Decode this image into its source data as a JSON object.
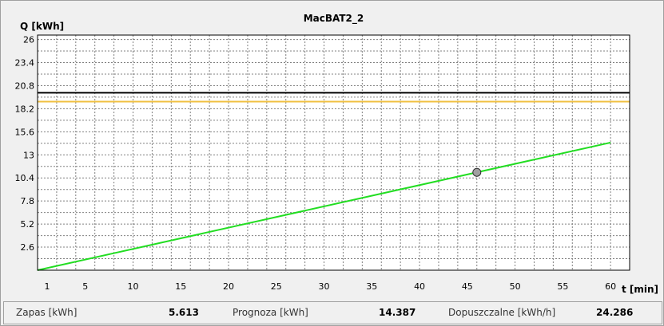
{
  "chart_data": {
    "type": "line",
    "title": "MacBAT2_2",
    "xlabel": "t [min]",
    "ylabel": "Q [kWh]",
    "xlim": [
      0,
      62
    ],
    "ylim": [
      0,
      26.5
    ],
    "x_ticks": [
      1,
      5,
      10,
      15,
      20,
      25,
      30,
      35,
      40,
      45,
      50,
      55,
      60
    ],
    "y_ticks": [
      2.6,
      5.2,
      7.8,
      10.4,
      13,
      15.6,
      18.2,
      20.8,
      23.4,
      26
    ],
    "x_tick_labels": [
      "1",
      "5",
      "10",
      "15",
      "20",
      "25",
      "30",
      "35",
      "40",
      "45",
      "50",
      "55",
      "60"
    ],
    "y_tick_labels": [
      "2.6",
      "5.2",
      "7.8",
      "10.4",
      "13",
      "15.6",
      "18.2",
      "20.8",
      "23.4",
      "26"
    ],
    "grid": true,
    "series": [
      {
        "color": "#22dd22",
        "x": [
          0,
          60
        ],
        "y": [
          0,
          14.387
        ]
      }
    ],
    "marker": {
      "x": 46,
      "y": 11.03,
      "color": "#a0a0a0"
    },
    "hlines": [
      {
        "y": 20.0,
        "color": "#000000"
      },
      {
        "y": 19.0,
        "color": "#f0c040"
      }
    ]
  },
  "status": {
    "zapas_label": "Zapas [kWh]",
    "zapas_value": "5.613",
    "prognoza_label": "Prognoza [kWh]",
    "prognoza_value": "14.387",
    "dopuszczalne_label": "Dopuszczalne [kWh/h]",
    "dopuszczalne_value": "24.286"
  }
}
